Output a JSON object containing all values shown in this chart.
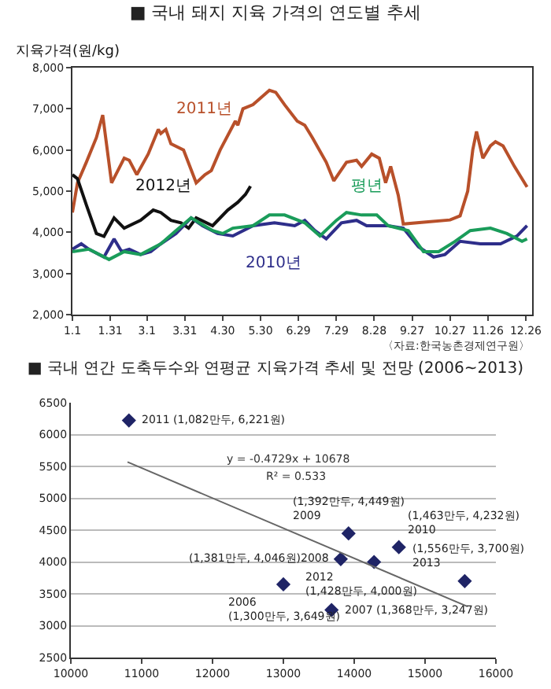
{
  "chart_data": [
    {
      "type": "line",
      "title": "■ 국내 돼지 지육 가격의 연도별 추세",
      "ylabel": "지육가격(원/kg)",
      "annotations": [
        "〈자료:한국농촌경제연구원〉"
      ],
      "xlim": [
        "--01-01",
        "--12-31"
      ],
      "xticks": [
        {
          "value": "--01-01",
          "label": "1.1"
        },
        {
          "value": "--01-31",
          "label": "1.31"
        },
        {
          "value": "--03-01",
          "label": "3.1"
        },
        {
          "value": "--03-31",
          "label": "3.31"
        },
        {
          "value": "--04-30",
          "label": "4.30"
        },
        {
          "value": "--05-30",
          "label": "5.30"
        },
        {
          "value": "--06-29",
          "label": "6.29"
        },
        {
          "value": "--07-29",
          "label": "7.29"
        },
        {
          "value": "--08-28",
          "label": "8.28"
        },
        {
          "value": "--09-27",
          "label": "9.27"
        },
        {
          "value": "--10-27",
          "label": "10.27"
        },
        {
          "value": "--11-26",
          "label": "11.26"
        },
        {
          "value": "--12-26",
          "label": "12.26"
        }
      ],
      "ylim": [
        2000,
        8000
      ],
      "yticks": [
        {
          "value": 2000,
          "label": "2,000"
        },
        {
          "value": 3000,
          "label": "3,000"
        },
        {
          "value": 4000,
          "label": "4,000"
        },
        {
          "value": 5000,
          "label": "5,000"
        },
        {
          "value": 6000,
          "label": "6,000"
        },
        {
          "value": 7000,
          "label": "7,000"
        },
        {
          "value": 8000,
          "label": "8,000"
        }
      ],
      "grid": false,
      "legend": false,
      "marker": "none",
      "line_style": "solid",
      "series": [
        {
          "name": "2011년",
          "color": "#b8502a",
          "x": [
            "--01-01",
            "--01-05",
            "--01-12",
            "--01-20",
            "--01-25",
            "--02-01",
            "--02-11",
            "--02-15",
            "--02-21",
            "--03-02",
            "--03-10",
            "--03-12",
            "--03-16",
            "--03-20",
            "--03-30",
            "--04-09",
            "--04-16",
            "--04-21",
            "--04-28",
            "--05-10",
            "--05-12",
            "--05-16",
            "--05-24",
            "--06-06",
            "--06-11",
            "--06-18",
            "--06-28",
            "--07-04",
            "--07-10",
            "--07-21",
            "--07-27",
            "--08-06",
            "--08-14",
            "--08-18",
            "--08-26",
            "--09-01",
            "--09-06",
            "--09-10",
            "--09-16",
            "--09-20",
            "--10-08",
            "--10-27",
            "--11-04",
            "--11-10",
            "--11-14",
            "--11-17",
            "--11-22",
            "--11-28",
            "--12-02",
            "--12-08",
            "--12-17",
            "--12-23",
            "--12-27"
          ],
          "values": [
            4480,
            5200,
            5700,
            6300,
            6850,
            5200,
            5800,
            5750,
            5400,
            5900,
            6500,
            6400,
            6500,
            6150,
            6000,
            5200,
            5400,
            5500,
            6000,
            6700,
            6600,
            7000,
            7100,
            7450,
            7400,
            7100,
            6700,
            6600,
            6300,
            5700,
            5250,
            5700,
            5750,
            5600,
            5900,
            5800,
            5200,
            5600,
            4900,
            4200,
            4250,
            4300,
            4400,
            5000,
            6000,
            6450,
            5800,
            6100,
            6200,
            6100,
            5600,
            5300,
            5100
          ]
        },
        {
          "name": "2012년",
          "color": "#111111",
          "x": [
            "--01-01",
            "--01-05",
            "--01-12",
            "--01-20",
            "--01-26",
            "--02-03",
            "--02-11",
            "--02-24",
            "--03-06",
            "--03-12",
            "--03-20",
            "--03-28",
            "--04-03",
            "--04-09",
            "--04-22",
            "--05-04",
            "--05-12",
            "--05-18",
            "--05-22"
          ],
          "values": [
            5400,
            5300,
            4670,
            3970,
            3900,
            4350,
            4100,
            4290,
            4540,
            4480,
            4290,
            4230,
            4100,
            4350,
            4160,
            4540,
            4730,
            4920,
            5120
          ]
        },
        {
          "name": "2010년",
          "color": "#2e2e8a",
          "x": [
            "--01-01",
            "--01-08",
            "--01-14",
            "--01-26",
            "--02-03",
            "--02-09",
            "--02-15",
            "--02-24",
            "--03-04",
            "--03-12",
            "--03-24",
            "--04-05",
            "--04-14",
            "--04-26",
            "--05-08",
            "--05-24",
            "--06-10",
            "--06-26",
            "--07-04",
            "--07-12",
            "--07-21",
            "--08-02",
            "--08-14",
            "--08-22",
            "--09-08",
            "--09-20",
            "--10-02",
            "--10-14",
            "--10-23",
            "--11-04",
            "--11-20",
            "--12-06",
            "--12-19",
            "--12-27"
          ],
          "values": [
            3590,
            3720,
            3590,
            3400,
            3840,
            3530,
            3590,
            3460,
            3530,
            3720,
            3970,
            4350,
            4160,
            3970,
            3910,
            4160,
            4230,
            4160,
            4290,
            4040,
            3840,
            4230,
            4290,
            4160,
            4160,
            4100,
            3650,
            3400,
            3460,
            3780,
            3720,
            3720,
            3910,
            4160
          ]
        },
        {
          "name": "평년",
          "color": "#1a9c5a",
          "x": [
            "--01-01",
            "--01-14",
            "--01-30",
            "--02-11",
            "--02-24",
            "--03-12",
            "--03-24",
            "--04-05",
            "--04-22",
            "--04-30",
            "--05-08",
            "--05-24",
            "--06-06",
            "--06-18",
            "--07-04",
            "--07-16",
            "--07-29",
            "--08-06",
            "--08-18",
            "--08-30",
            "--09-08",
            "--09-24",
            "--10-06",
            "--10-18",
            "--10-31",
            "--11-12",
            "--11-28",
            "--12-11",
            "--12-23",
            "--12-27"
          ],
          "values": [
            3530,
            3590,
            3340,
            3530,
            3460,
            3720,
            4040,
            4350,
            4040,
            3970,
            4100,
            4160,
            4420,
            4420,
            4230,
            3910,
            4290,
            4480,
            4420,
            4420,
            4160,
            4040,
            3530,
            3530,
            3780,
            4040,
            4100,
            3970,
            3780,
            3840
          ]
        }
      ]
    },
    {
      "type": "scatter",
      "title": "■ 국내 연간 도축두수와 연평균 지육가격 추세 및 전망 (2006~2013)",
      "annotations": [
        "y = -0.4729x + 10678",
        "R² = 0.533",
        {
          "text": "2011 (1,082만두, 6,221원)",
          "x": 10820,
          "y": 6221
        },
        {
          "text": "(1,392만두, 4,449원)\n2009",
          "x": 13920,
          "y": 4449
        },
        {
          "text": "(1,463만두, 4,232원)\n2010",
          "x": 14630,
          "y": 4232
        },
        {
          "text": "(1,381만두, 4,046원)2008",
          "x": 13810,
          "y": 4046
        },
        {
          "text": "2012\n(1,428만두, 4,000원)",
          "x": 14280,
          "y": 4000
        },
        {
          "text": "(1,556만두, 3,700원)\n2013",
          "x": 15560,
          "y": 3700
        },
        {
          "text": "2006\n(1,300만두, 3,649원)",
          "x": 13000,
          "y": 3649
        },
        {
          "text": "2007 (1,368만두, 3,247원)",
          "x": 13680,
          "y": 3247
        }
      ],
      "xlim": [
        10000,
        16000
      ],
      "xticks": [
        10000,
        11000,
        12000,
        13000,
        14000,
        15000,
        16000
      ],
      "ylim": [
        2500,
        6500
      ],
      "yticks": [
        2500,
        3000,
        3500,
        4000,
        4500,
        5000,
        5500,
        6000,
        6500
      ],
      "grid": "y",
      "legend": false,
      "marker": "diamond",
      "series": [
        {
          "color": "#1f2466",
          "x": [
            10820,
            13920,
            14630,
            13810,
            14280,
            15560,
            13000,
            13680
          ],
          "values": [
            6221,
            4449,
            4232,
            4046,
            4000,
            3700,
            3649,
            3247
          ]
        },
        {
          "type": "line",
          "color": "#666666",
          "marker": "none",
          "x": [
            10800,
            15600
          ],
          "values": [
            5570,
            3300
          ]
        }
      ]
    }
  ]
}
